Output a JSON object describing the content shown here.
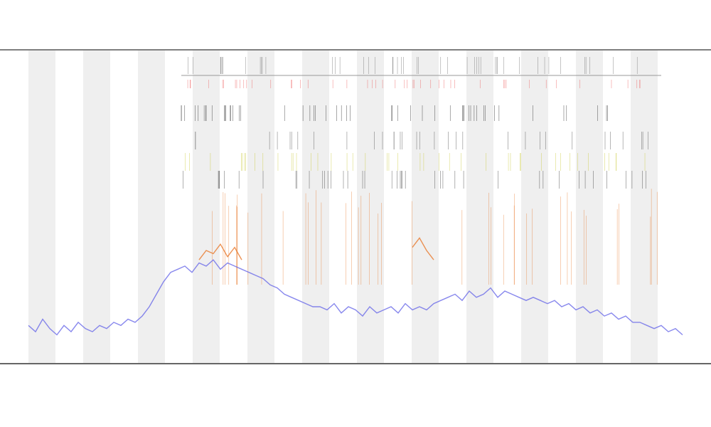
{
  "chart_data": {
    "type": "line",
    "ylim": [
      0,
      100
    ],
    "series": [
      {
        "color": "#6a6ae8",
        "values": [
          12,
          10,
          14,
          11,
          9,
          12,
          10,
          13,
          11,
          10,
          12,
          11,
          13,
          12,
          14,
          13,
          15,
          18,
          22,
          26,
          29,
          30,
          31,
          29,
          32,
          31,
          33,
          30,
          32,
          31,
          30,
          29,
          28,
          27,
          25,
          24,
          22,
          21,
          20,
          19,
          18,
          18,
          17,
          19,
          16,
          18,
          17,
          15,
          18,
          16,
          17,
          18,
          16,
          19,
          17,
          18,
          17,
          19,
          20,
          21,
          22,
          20,
          23,
          21,
          22,
          24,
          21,
          23,
          22,
          21,
          20,
          21,
          20,
          19,
          20,
          18,
          19,
          17,
          18,
          16,
          17,
          15,
          16,
          14,
          15,
          13,
          13,
          12,
          11,
          12,
          10,
          11,
          9
        ]
      },
      {
        "color": "#e8782a",
        "values": [
          null,
          null,
          null,
          null,
          null,
          null,
          null,
          null,
          null,
          null,
          null,
          null,
          null,
          null,
          null,
          null,
          null,
          null,
          null,
          null,
          null,
          null,
          null,
          null,
          33,
          36,
          35,
          38,
          34,
          37,
          33,
          null,
          null,
          null,
          null,
          null,
          null,
          null,
          null,
          null,
          null,
          null,
          null,
          null,
          null,
          null,
          null,
          null,
          null,
          null,
          null,
          null,
          null,
          null,
          37,
          40,
          36,
          33,
          null,
          null,
          null,
          null,
          null,
          null,
          null,
          null,
          null,
          null,
          null,
          null,
          null,
          null,
          null,
          null,
          null,
          null,
          null,
          null,
          null,
          null,
          null,
          null,
          null,
          null,
          null,
          null,
          null,
          null,
          null,
          null,
          null,
          null,
          null
        ]
      }
    ]
  }
}
